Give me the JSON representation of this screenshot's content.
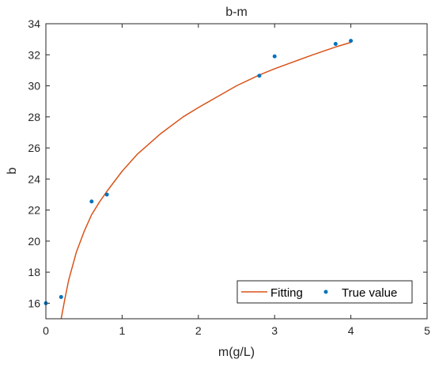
{
  "chart_data": {
    "type": "scatter",
    "title": "b-m",
    "xlabel": "m(g/L)",
    "ylabel": "b",
    "xlim": [
      0,
      5
    ],
    "ylim": [
      15,
      34
    ],
    "xticks": [
      0,
      1,
      2,
      3,
      4,
      5
    ],
    "yticks": [
      16,
      18,
      20,
      22,
      24,
      26,
      28,
      30,
      32,
      34
    ],
    "grid": false,
    "legend_position": "bottom-right",
    "series": [
      {
        "name": "Fitting",
        "kind": "line",
        "color": "#D95319",
        "x": [
          0.2,
          0.25,
          0.3,
          0.4,
          0.5,
          0.6,
          0.7,
          0.8,
          1.0,
          1.2,
          1.5,
          1.8,
          2.0,
          2.5,
          2.8,
          3.0,
          3.5,
          3.8,
          4.0
        ],
        "y": [
          15.0,
          16.3,
          17.5,
          19.3,
          20.6,
          21.7,
          22.5,
          23.2,
          24.5,
          25.6,
          26.9,
          28.0,
          28.6,
          30.0,
          30.7,
          31.1,
          32.0,
          32.5,
          32.8
        ]
      },
      {
        "name": "True value",
        "kind": "scatter",
        "color": "#0072BD",
        "x": [
          0,
          0.2,
          0.6,
          0.8,
          2.8,
          3.0,
          3.8,
          4.0
        ],
        "y": [
          16.0,
          16.4,
          22.55,
          23.0,
          30.65,
          31.9,
          32.7,
          32.9
        ]
      }
    ]
  }
}
